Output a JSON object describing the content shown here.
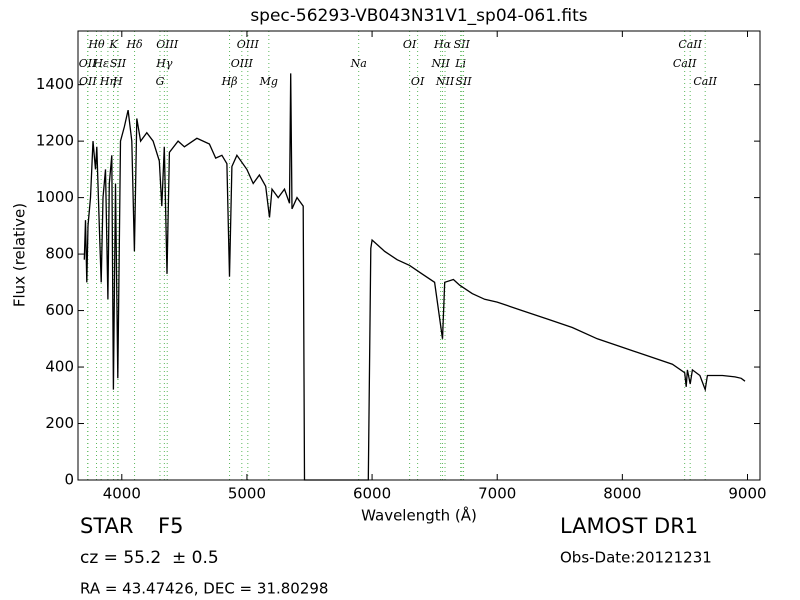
{
  "chart_data": {
    "type": "line",
    "title": "spec-56293-VB043N31V1_sp04-061.fits",
    "x_label": "Wavelength (Å)",
    "y_label": "Flux (relative)",
    "xlim": [
      3650,
      9100
    ],
    "ylim": [
      0,
      1590
    ],
    "xticks": [
      4000,
      5000,
      6000,
      7000,
      8000,
      9000
    ],
    "yticks": [
      0,
      200,
      400,
      600,
      800,
      1000,
      1200,
      1400
    ],
    "color": "#000000",
    "line_color": "#5cb85c",
    "x": [
      3700,
      3710,
      3720,
      3730,
      3750,
      3770,
      3790,
      3800,
      3820,
      3835,
      3850,
      3870,
      3889,
      3900,
      3920,
      3933,
      3950,
      3968,
      3990,
      4020,
      4050,
      4080,
      4101,
      4120,
      4150,
      4200,
      4250,
      4300,
      4320,
      4340,
      4361,
      4380,
      4450,
      4500,
      4600,
      4700,
      4750,
      4800,
      4840,
      4861,
      4880,
      4920,
      5000,
      5050,
      5100,
      5150,
      5180,
      5200,
      5250,
      5300,
      5340,
      5350,
      5360,
      5400,
      5450,
      5460,
      5970,
      5990,
      6000,
      6050,
      6100,
      6200,
      6300,
      6400,
      6500,
      6563,
      6580,
      6650,
      6700,
      6800,
      6900,
      7000,
      7200,
      7400,
      7600,
      7800,
      8000,
      8200,
      8400,
      8498,
      8510,
      8520,
      8542,
      8560,
      8620,
      8662,
      8680,
      8800,
      8900,
      8950,
      8980
    ],
    "values": [
      780,
      920,
      700,
      900,
      1000,
      1200,
      1100,
      1180,
      900,
      700,
      1000,
      1100,
      640,
      1050,
      1150,
      320,
      1050,
      360,
      1200,
      1250,
      1310,
      1200,
      810,
      1280,
      1200,
      1230,
      1200,
      1130,
      970,
      1180,
      730,
      1160,
      1200,
      1180,
      1210,
      1190,
      1140,
      1150,
      1120,
      720,
      1110,
      1150,
      1100,
      1050,
      1080,
      1040,
      930,
      1030,
      1000,
      1030,
      980,
      1440,
      960,
      1000,
      970,
      0,
      0,
      820,
      850,
      830,
      810,
      780,
      760,
      730,
      700,
      500,
      700,
      710,
      690,
      660,
      640,
      630,
      600,
      570,
      540,
      500,
      470,
      440,
      410,
      380,
      330,
      390,
      340,
      390,
      370,
      320,
      370,
      370,
      365,
      360,
      350
    ],
    "lines": [
      {
        "label": "Hθ",
        "wavelength": 3798
      },
      {
        "label": "K",
        "wavelength": 3934
      },
      {
        "label": "Hδ",
        "wavelength": 4102
      },
      {
        "label": "OIII",
        "wavelength": 4363
      },
      {
        "label": "OIII",
        "wavelength": 5007
      },
      {
        "label": "OI",
        "wavelength": 6300
      },
      {
        "label": "Hα",
        "wavelength": 6563
      },
      {
        "label": "SII",
        "wavelength": 6717
      },
      {
        "label": "CaII",
        "wavelength": 8542
      },
      {
        "label": "OII",
        "wavelength": 3727
      },
      {
        "label": "Hε",
        "wavelength": 3835
      },
      {
        "label": "SII",
        "wavelength": 3970
      },
      {
        "label": "Hγ",
        "wavelength": 4340
      },
      {
        "label": "OIII",
        "wavelength": 4959
      },
      {
        "label": "Na",
        "wavelength": 5893
      },
      {
        "label": "NII",
        "wavelength": 6548
      },
      {
        "label": "Li",
        "wavelength": 6708
      },
      {
        "label": "CaII",
        "wavelength": 8498
      },
      {
        "label": "OII",
        "wavelength": 3729
      },
      {
        "label": "Hη",
        "wavelength": 3889
      },
      {
        "label": "H",
        "wavelength": 3968
      },
      {
        "label": "G",
        "wavelength": 4305
      },
      {
        "label": "Hβ",
        "wavelength": 4861
      },
      {
        "label": "Mg",
        "wavelength": 5175
      },
      {
        "label": "OI",
        "wavelength": 6364
      },
      {
        "label": "NII",
        "wavelength": 6583
      },
      {
        "label": "SII",
        "wavelength": 6731
      },
      {
        "label": "CaII",
        "wavelength": 8662
      }
    ]
  },
  "info": {
    "object_class": "STAR",
    "subclass": "F5",
    "redshift": "cz = 55.2  ± 0.5",
    "survey": "LAMOST DR1",
    "obs_date": "Obs-Date:20121231",
    "coords": "RA = 43.47426, DEC = 31.80298"
  }
}
